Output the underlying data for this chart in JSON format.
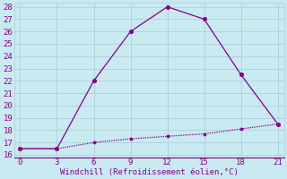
{
  "xlabel": "Windchill (Refroidissement éolien,°C)",
  "line1_x": [
    0,
    3,
    6,
    9,
    12,
    15,
    18,
    21
  ],
  "line1_y": [
    16.5,
    16.5,
    22.0,
    26.0,
    28.0,
    27.0,
    22.5,
    18.5
  ],
  "line2_x": [
    0,
    3,
    6,
    9,
    12,
    15,
    18,
    21
  ],
  "line2_y": [
    16.5,
    16.5,
    17.0,
    17.3,
    17.5,
    17.7,
    18.1,
    18.5
  ],
  "line_color": "#880088",
  "bg_color": "#c8eaf0",
  "grid_color": "#b0cedd",
  "xlim": [
    -0.5,
    21.5
  ],
  "ylim": [
    15.8,
    28.3
  ],
  "xticks": [
    0,
    3,
    6,
    9,
    12,
    15,
    18,
    21
  ],
  "yticks": [
    16,
    17,
    18,
    19,
    20,
    21,
    22,
    23,
    24,
    25,
    26,
    27,
    28
  ],
  "tick_label_color": "#880088",
  "xlabel_color": "#880088",
  "tick_fontsize": 6.5,
  "xlabel_fontsize": 6.5,
  "linewidth": 0.9,
  "markersize": 3.5
}
